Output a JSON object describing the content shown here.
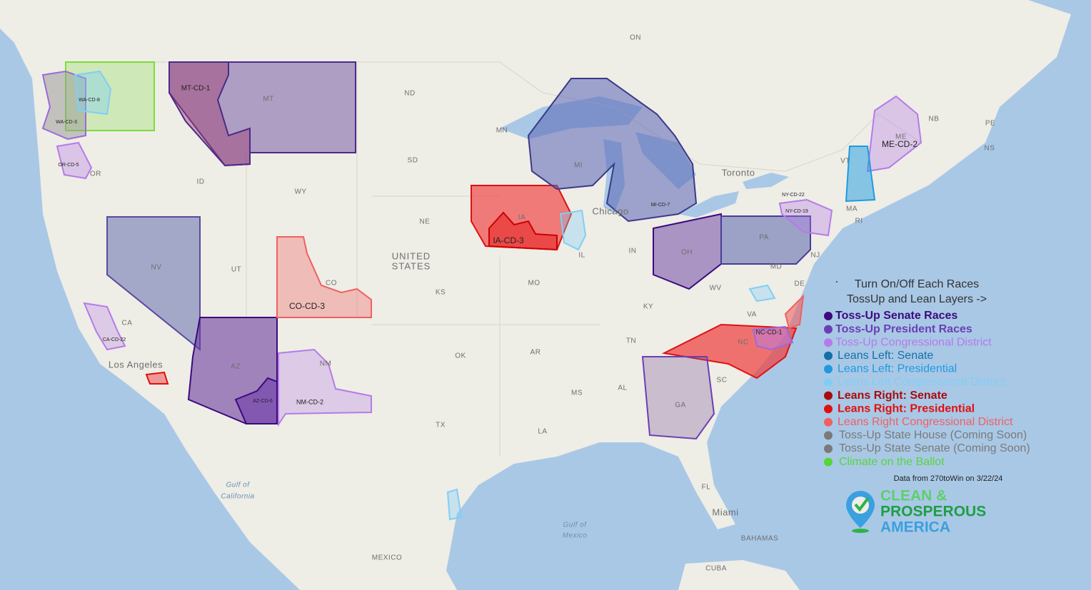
{
  "map_labels": [
    "ON",
    "ND",
    "MN",
    "SD",
    "MT",
    "ID",
    "WY",
    "OR",
    "NE",
    "NV",
    "UT",
    "UNITED",
    "STATES",
    "CA",
    "CO",
    "KS",
    "MO",
    "IA",
    "IL",
    "IN",
    "OH",
    "PA",
    "MI",
    "WV",
    "VA",
    "KY",
    "TN",
    "NC",
    "SC",
    "AR",
    "OK",
    "NM",
    "AZ",
    "TX",
    "LA",
    "MS",
    "AL",
    "GA",
    "FL",
    "MD",
    "DE",
    "NJ",
    "RI",
    "MA",
    "VT",
    "ME",
    "NB",
    "NS",
    "PE",
    "Toronto",
    "Chicago",
    "Los Angeles",
    "Miami",
    "BAHAMAS",
    "CUBA",
    "MEXICO",
    "Gulf of",
    "California",
    "Gulf of",
    "Mexico"
  ],
  "district_labels": [
    "MT-CD-1",
    "WA-CD-8",
    "WA-CD-3",
    "OR-CD-5",
    "ME-CD-2",
    "IA-CD-3",
    "CO-CD-3",
    "NM-CD-2",
    "NC-CD-1",
    "AZ-CD-6",
    "CA-CD-22",
    "NY-CD-22",
    "NY-CD-19",
    "MI-CD-7"
  ],
  "legend": {
    "title": [
      "Turn On/Off Each Races",
      "TossUp and Lean Layers ->"
    ],
    "items": [
      {
        "label": "Toss-Up Senate Races",
        "color": "#3b0a7d"
      },
      {
        "label": "Toss-Up President Races",
        "color": "#6a3fb5"
      },
      {
        "label": "Toss-Up Congressional District",
        "color": "#b57be8"
      },
      {
        "label": "Leans Left: Senate",
        "color": "#1270a8"
      },
      {
        "label": "Leans Left: Presidential",
        "color": "#1e9be0"
      },
      {
        "label": "Leans Left Congressional District",
        "color": "#7fcff5"
      },
      {
        "label": "Leans Right: Senate",
        "color": "#a60d0d"
      },
      {
        "label": "Leans Right: Presidential",
        "color": "#e01010"
      },
      {
        "label": "Leans Right Congressional District",
        "color": "#f06060"
      },
      {
        "label": "Toss-Up State House (Coming Soon)",
        "color": "#7a7a7a"
      },
      {
        "label": "Toss-Up State Senate (Coming Soon)",
        "color": "#7a7a7a"
      },
      {
        "label": "Climate on the Ballot",
        "color": "#55d63a"
      }
    ]
  },
  "source": "Data from 270toWin on 3/22/24",
  "logo": [
    "CLEAN &",
    "PROSPEROUS",
    "AMERICA"
  ]
}
